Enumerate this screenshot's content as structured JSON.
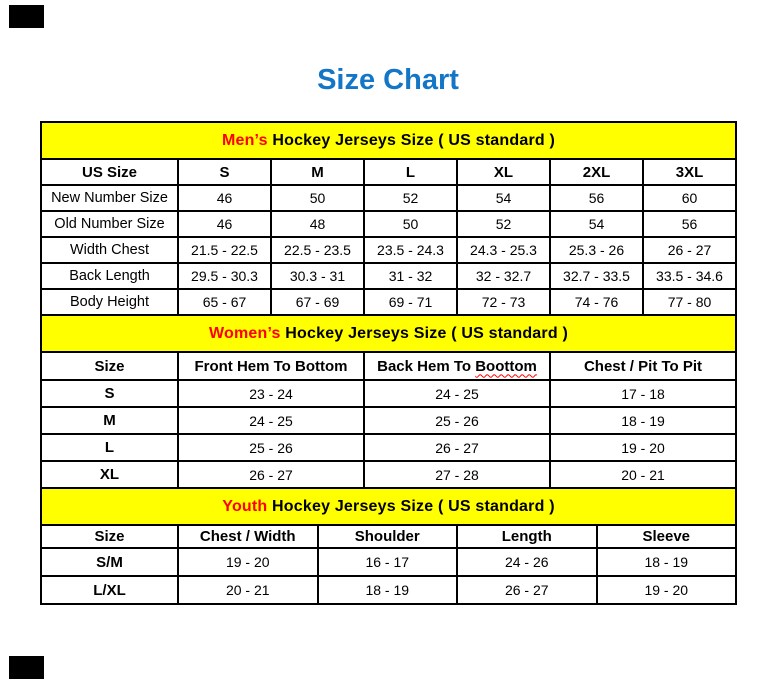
{
  "page": {
    "title": "Size Chart"
  },
  "colors": {
    "title_blue": "#1476c6",
    "banner_yellow": "#ffff00",
    "accent_red": "#ff0000",
    "border_black": "#000000"
  },
  "men": {
    "banner": {
      "highlight": "Men’s",
      "rest": " Hockey Jerseys Size ( US standard )"
    },
    "headers": [
      "US Size",
      "S",
      "M",
      "L",
      "XL",
      "2XL",
      "3XL"
    ],
    "rows": [
      {
        "label": "New Number Size",
        "values": [
          "46",
          "50",
          "52",
          "54",
          "56",
          "60"
        ]
      },
      {
        "label": "Old Number Size",
        "values": [
          "46",
          "48",
          "50",
          "52",
          "54",
          "56"
        ]
      },
      {
        "label": "Width Chest",
        "values": [
          "21.5 - 22.5",
          "22.5 - 23.5",
          "23.5 - 24.3",
          "24.3 - 25.3",
          "25.3 - 26",
          "26 - 27"
        ]
      },
      {
        "label": "Back Length",
        "values": [
          "29.5 - 30.3",
          "30.3 - 31",
          "31 - 32",
          "32 - 32.7",
          "32.7 - 33.5",
          "33.5 - 34.6"
        ]
      },
      {
        "label": "Body Height",
        "values": [
          "65 - 67",
          "67 - 69",
          "69 - 71",
          "72 - 73",
          "74 - 76",
          "77 - 80"
        ]
      }
    ]
  },
  "women": {
    "banner": {
      "highlight": "Women’s",
      "rest": " Hockey Jerseys Size ( US standard )"
    },
    "headers": {
      "col0": "Size",
      "col1": "Front Hem To Bottom",
      "col2_prefix": "Back Hem To ",
      "col2_word": "Boottom",
      "col3": "Chest / Pit To Pit"
    },
    "rows": [
      {
        "label": "S",
        "values": [
          "23 - 24",
          "24 - 25",
          "17 - 18"
        ]
      },
      {
        "label": "M",
        "values": [
          "24 - 25",
          "25 - 26",
          "18 - 19"
        ]
      },
      {
        "label": "L",
        "values": [
          "25 - 26",
          "26 - 27",
          "19 - 20"
        ]
      },
      {
        "label": "XL",
        "values": [
          "26 - 27",
          "27 - 28",
          "20 - 21"
        ]
      }
    ]
  },
  "youth": {
    "banner": {
      "highlight": "Youth",
      "rest": " Hockey Jerseys Size ( US standard )"
    },
    "headers": [
      "Size",
      "Chest / Width",
      "Shoulder",
      "Length",
      "Sleeve"
    ],
    "rows": [
      {
        "label": "S/M",
        "values": [
          "19 - 20",
          "16 - 17",
          "24 - 26",
          "18 - 19"
        ]
      },
      {
        "label": "L/XL",
        "values": [
          "20 - 21",
          "18 - 19",
          "26 - 27",
          "19 - 20"
        ]
      }
    ]
  }
}
